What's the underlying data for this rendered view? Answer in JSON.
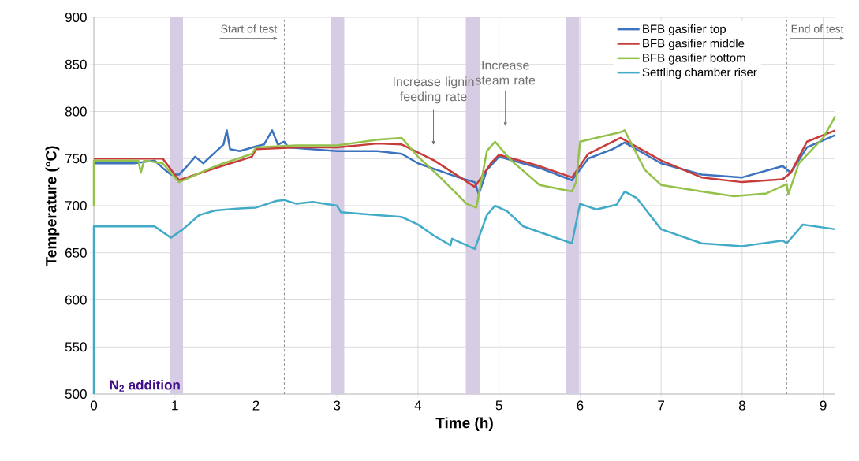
{
  "chart_data": {
    "type": "line",
    "xlabel": "Time (h)",
    "ylabel": "Temperature (°C)",
    "xlim": [
      0,
      9.15
    ],
    "ylim": [
      500,
      900
    ],
    "xticks": [
      0,
      1,
      2,
      3,
      4,
      5,
      6,
      7,
      8,
      9
    ],
    "yticks": [
      500,
      550,
      600,
      650,
      700,
      750,
      800,
      850,
      900
    ],
    "grid": true,
    "legend": "top right",
    "series": [
      {
        "name": "BFB gasifier top",
        "color": "#3b73c0",
        "x": [
          0,
          0.5,
          0.75,
          0.85,
          0.95,
          1.05,
          1.15,
          1.25,
          1.35,
          1.5,
          1.6,
          1.64,
          1.68,
          1.8,
          2.0,
          2.1,
          2.2,
          2.27,
          2.35,
          2.4,
          3.0,
          3.5,
          3.8,
          4.0,
          4.5,
          4.7,
          4.75,
          4.85,
          5.0,
          5.5,
          5.9,
          6.1,
          6.4,
          6.55,
          7.0,
          7.5,
          8.0,
          8.5,
          8.6,
          8.8,
          9.15
        ],
        "values": [
          745,
          745,
          748,
          740,
          733,
          733,
          742,
          752,
          745,
          757,
          765,
          780,
          760,
          758,
          763,
          765,
          780,
          765,
          768,
          762,
          758,
          758,
          755,
          745,
          730,
          725,
          712,
          738,
          752,
          740,
          727,
          750,
          760,
          767,
          745,
          733,
          730,
          742,
          735,
          762,
          775
        ]
      },
      {
        "name": "BFB gasifier middle",
        "color": "#c73b3a",
        "x": [
          0,
          0.85,
          1.05,
          1.5,
          1.95,
          2.0,
          2.5,
          3.0,
          3.5,
          3.8,
          4.2,
          4.7,
          4.9,
          5.0,
          5.5,
          5.9,
          6.1,
          6.5,
          7.0,
          7.5,
          8.0,
          8.5,
          8.6,
          8.8,
          9.15
        ],
        "values": [
          750,
          750,
          727,
          740,
          752,
          760,
          762,
          762,
          766,
          765,
          748,
          720,
          745,
          754,
          742,
          730,
          755,
          772,
          748,
          730,
          725,
          728,
          735,
          768,
          780
        ]
      },
      {
        "name": "BFB gasifier bottom",
        "color": "#93c14a",
        "x": [
          0,
          0,
          0.55,
          0.58,
          0.62,
          0.85,
          1.05,
          1.5,
          1.95,
          2.0,
          2.5,
          3.0,
          3.5,
          3.8,
          4.0,
          4.3,
          4.6,
          4.72,
          4.85,
          4.95,
          5.15,
          5.5,
          5.9,
          5.95,
          6.0,
          6.1,
          6.5,
          6.55,
          6.8,
          7.0,
          7.5,
          7.9,
          8.3,
          8.55,
          8.57,
          8.7,
          9.0,
          9.15
        ],
        "values": [
          700,
          748,
          748,
          735,
          748,
          745,
          725,
          742,
          755,
          762,
          764,
          764,
          770,
          772,
          752,
          728,
          702,
          698,
          758,
          768,
          748,
          722,
          715,
          725,
          768,
          770,
          778,
          780,
          738,
          722,
          715,
          710,
          713,
          723,
          712,
          745,
          772,
          795
        ]
      },
      {
        "name": "Settling chamber riser",
        "color": "#42abc7",
        "x": [
          0,
          0,
          0.75,
          0.95,
          1.1,
          1.3,
          1.5,
          1.8,
          2.0,
          2.25,
          2.35,
          2.5,
          2.7,
          3.0,
          3.05,
          3.5,
          3.8,
          4.0,
          4.2,
          4.4,
          4.42,
          4.7,
          4.85,
          4.95,
          5.1,
          5.3,
          5.5,
          5.9,
          5.97,
          6.0,
          6.2,
          6.45,
          6.55,
          6.7,
          7.0,
          7.5,
          8.0,
          8.5,
          8.55,
          8.75,
          9.15
        ],
        "values": [
          500,
          678,
          678,
          666,
          675,
          690,
          695,
          697,
          698,
          705,
          706,
          702,
          704,
          700,
          693,
          690,
          688,
          680,
          668,
          658,
          665,
          654,
          690,
          700,
          694,
          678,
          672,
          660,
          690,
          702,
          696,
          701,
          715,
          708,
          675,
          660,
          657,
          663,
          660,
          680,
          675
        ]
      }
    ],
    "bands": [
      {
        "axis": "x",
        "from": 0.94,
        "to": 1.1,
        "label": "N$_{2}$ addition",
        "color": "#d6cde4"
      },
      {
        "axis": "x",
        "from": 2.93,
        "to": 3.09,
        "color": "#d6cde4"
      },
      {
        "axis": "x",
        "from": 4.59,
        "to": 4.76,
        "color": "#d6cde4"
      },
      {
        "axis": "x",
        "from": 5.83,
        "to": 5.99,
        "color": "#d6cde4"
      }
    ],
    "ref_lines": [
      {
        "axis": "x",
        "value": 2.35,
        "label": "Start of test",
        "color": "#8c8c8c",
        "line_style": "dashed"
      },
      {
        "axis": "x",
        "value": 8.55,
        "label": "End of test",
        "color": "#8c8c8c",
        "line_style": "dashed"
      }
    ],
    "annotations": [
      "Increase lignin feeding rate",
      "Increase steam rate"
    ]
  }
}
